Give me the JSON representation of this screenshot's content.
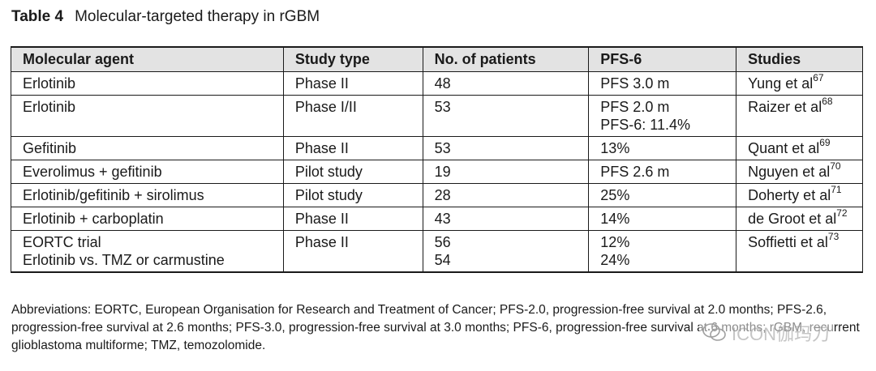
{
  "caption": {
    "label": "Table 4",
    "title": "Molecular-targeted therapy in rGBM"
  },
  "table": {
    "headers": [
      "Molecular agent",
      "Study type",
      "No. of patients",
      "PFS-6",
      "Studies"
    ],
    "rows": [
      {
        "agent": [
          "Erlotinib"
        ],
        "study_type": "Phase II",
        "patients": [
          "48"
        ],
        "pfs": [
          "PFS 3.0 m"
        ],
        "study": "Yung et al",
        "ref": "67"
      },
      {
        "agent": [
          "Erlotinib"
        ],
        "study_type": "Phase I/II",
        "patients": [
          "53"
        ],
        "pfs": [
          "PFS 2.0 m",
          "PFS-6: 11.4%"
        ],
        "study": "Raizer et al",
        "ref": "68"
      },
      {
        "agent": [
          "Gefitinib"
        ],
        "study_type": "Phase II",
        "patients": [
          "53"
        ],
        "pfs": [
          "13%"
        ],
        "study": "Quant et al",
        "ref": "69"
      },
      {
        "agent": [
          "Everolimus + gefitinib"
        ],
        "study_type": "Pilot study",
        "patients": [
          "19"
        ],
        "pfs": [
          "PFS 2.6 m"
        ],
        "study": "Nguyen et al",
        "ref": "70"
      },
      {
        "agent": [
          "Erlotinib/gefitinib + sirolimus"
        ],
        "study_type": "Pilot study",
        "patients": [
          "28"
        ],
        "pfs": [
          "25%"
        ],
        "study": "Doherty et al",
        "ref": "71"
      },
      {
        "agent": [
          "Erlotinib + carboplatin"
        ],
        "study_type": "Phase II",
        "patients": [
          "43"
        ],
        "pfs": [
          "14%"
        ],
        "study": "de Groot et al",
        "ref": "72"
      },
      {
        "agent": [
          "EORTC trial",
          "Erlotinib vs. TMZ or carmustine"
        ],
        "study_type": "Phase II",
        "patients": [
          "56",
          "54"
        ],
        "pfs": [
          "12%",
          "24%"
        ],
        "study": "Soffietti et al",
        "ref": "73"
      }
    ]
  },
  "footnote": "Abbreviations: EORTC, European Organisation for Research and Treatment of Cancer; PFS-2.0, progression-free survival at 2.0 months; PFS-2.6, progression-free survival at 2.6 months; PFS-3.0, progression-free survival at 3.0 months; PFS-6, progression-free survival at 6 months; rGBM, recurrent glioblastoma multiforme; TMZ, temozolomide.",
  "watermark": {
    "text": "ICON伽玛刀",
    "icon": "wechat-icon",
    "color": "#969696"
  }
}
